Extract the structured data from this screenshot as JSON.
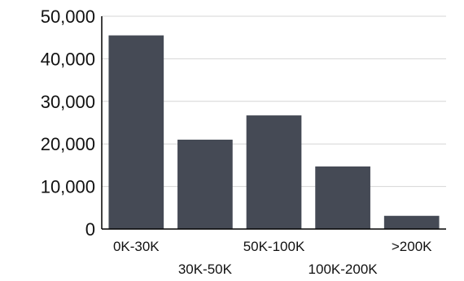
{
  "chart_data": {
    "type": "bar",
    "title": "",
    "xlabel": "",
    "ylabel": "",
    "categories": [
      "0K-30K",
      "30K-50K",
      "50K-100K",
      "100K-200K",
      ">200K"
    ],
    "values": [
      45500,
      21000,
      26700,
      14700,
      3100
    ],
    "ylim": [
      0,
      50000
    ],
    "yticks": [
      0,
      10000,
      20000,
      30000,
      40000,
      50000
    ],
    "ytick_labels": [
      "0",
      "10,000",
      "20,000",
      "30,000",
      "40,000",
      "50,000"
    ],
    "grid": true,
    "legend": "none",
    "bar_color": "#454a55",
    "grid_color": "#d6d6d6"
  }
}
